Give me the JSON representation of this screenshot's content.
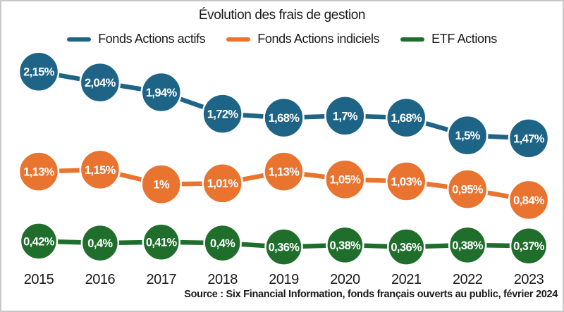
{
  "chart_data": {
    "type": "line",
    "title": "Évolution des frais de gestion",
    "categories": [
      "2015",
      "2016",
      "2017",
      "2018",
      "2019",
      "2020",
      "2021",
      "2022",
      "2023"
    ],
    "series": [
      {
        "name": "Fonds Actions actifs",
        "color": "#1E6486",
        "values": [
          2.15,
          2.04,
          1.94,
          1.72,
          1.68,
          1.7,
          1.68,
          1.5,
          1.47
        ],
        "labels": [
          "2,15%",
          "2,04%",
          "1,94%",
          "1,72%",
          "1,68%",
          "1,7%",
          "1,68%",
          "1,5%",
          "1,47%"
        ]
      },
      {
        "name": "Fonds Actions indiciels",
        "color": "#E8742F",
        "values": [
          1.13,
          1.15,
          1.0,
          1.01,
          1.13,
          1.05,
          1.03,
          0.95,
          0.84
        ],
        "labels": [
          "1,13%",
          "1,15%",
          "1%",
          "1,01%",
          "1,13%",
          "1,05%",
          "1,03%",
          "0,95%",
          "0,84%"
        ]
      },
      {
        "name": "ETF Actions",
        "color": "#1F6E2C",
        "values": [
          0.42,
          0.4,
          0.41,
          0.4,
          0.36,
          0.38,
          0.36,
          0.38,
          0.37
        ],
        "labels": [
          "0,42%",
          "0,4%",
          "0,41%",
          "0,4%",
          "0,36%",
          "0,38%",
          "0,36%",
          "0,38%",
          "0,37%"
        ]
      }
    ],
    "ylim": [
      0.3,
      2.35
    ],
    "grid": false,
    "legend_position": "top",
    "value_label_style": "percent-comma-in-bubble"
  },
  "source": "Source : Six Financial Information, fonds français ouverts au public, février 2024",
  "colors": {
    "background": "#ffffff",
    "frame_border": "#c9c9c9",
    "text": "#1a1a1a",
    "bubble_label_text": "#ffffff"
  }
}
